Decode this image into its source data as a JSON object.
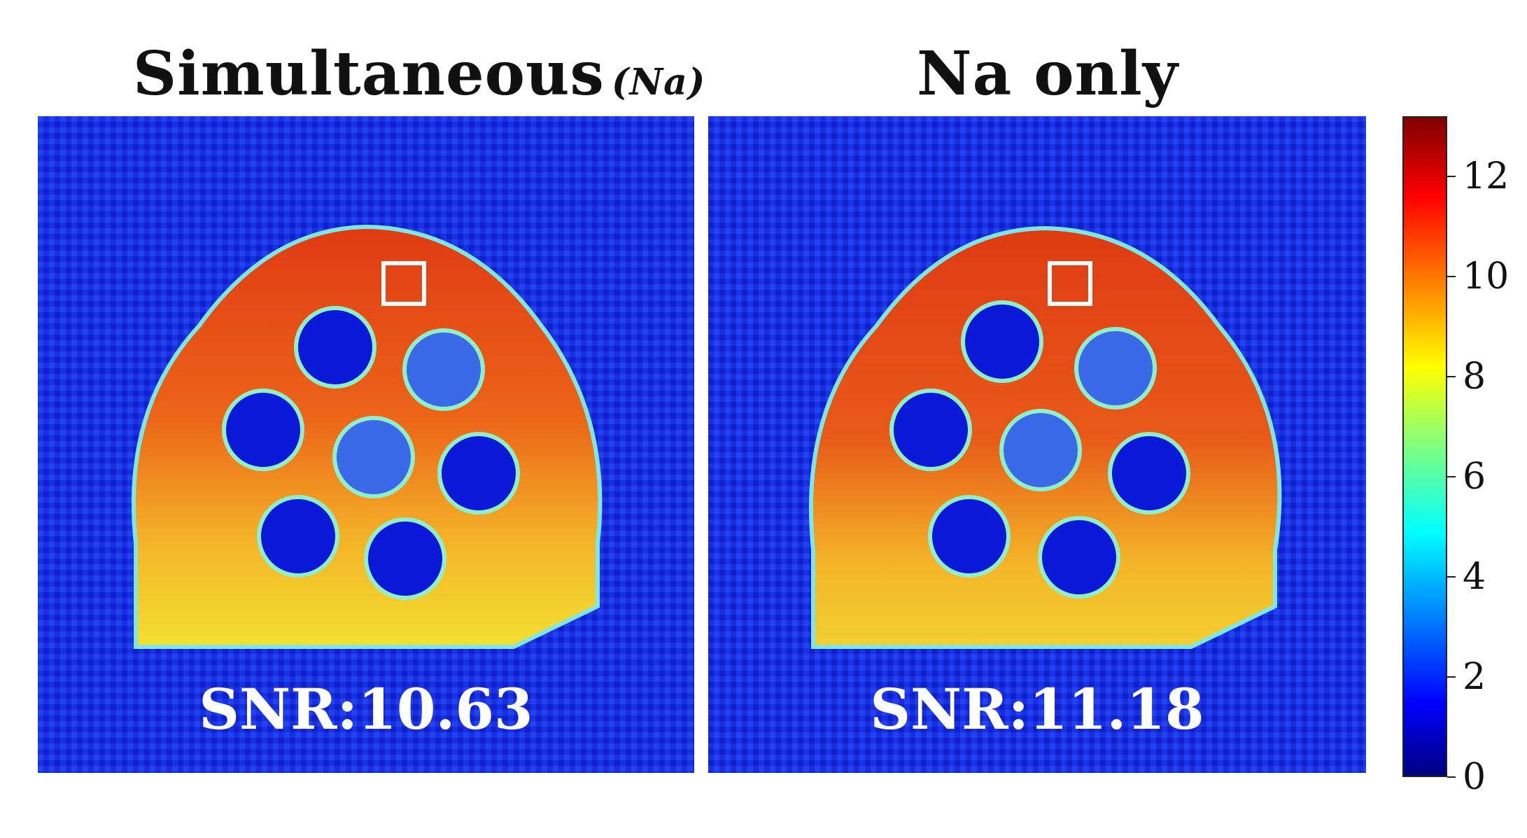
{
  "panels": [
    {
      "title": "Simultaneous",
      "subtitle": "(Na)",
      "snr_label": "SNR:10.63"
    },
    {
      "title": "Na only",
      "snr_label": "SNR:11.18"
    }
  ],
  "colorbar": {
    "min": 0,
    "max": 13.2,
    "colormap": "jet",
    "ticks": [
      "0",
      "2",
      "4",
      "6",
      "8",
      "10",
      "12"
    ]
  },
  "colors": {
    "background_noise": "#1a2ee6",
    "phantom_top": "#e03a14",
    "phantom_bottom": "#f2e030",
    "vial": "#0a1ad8",
    "roi_box": "#ffffff"
  }
}
